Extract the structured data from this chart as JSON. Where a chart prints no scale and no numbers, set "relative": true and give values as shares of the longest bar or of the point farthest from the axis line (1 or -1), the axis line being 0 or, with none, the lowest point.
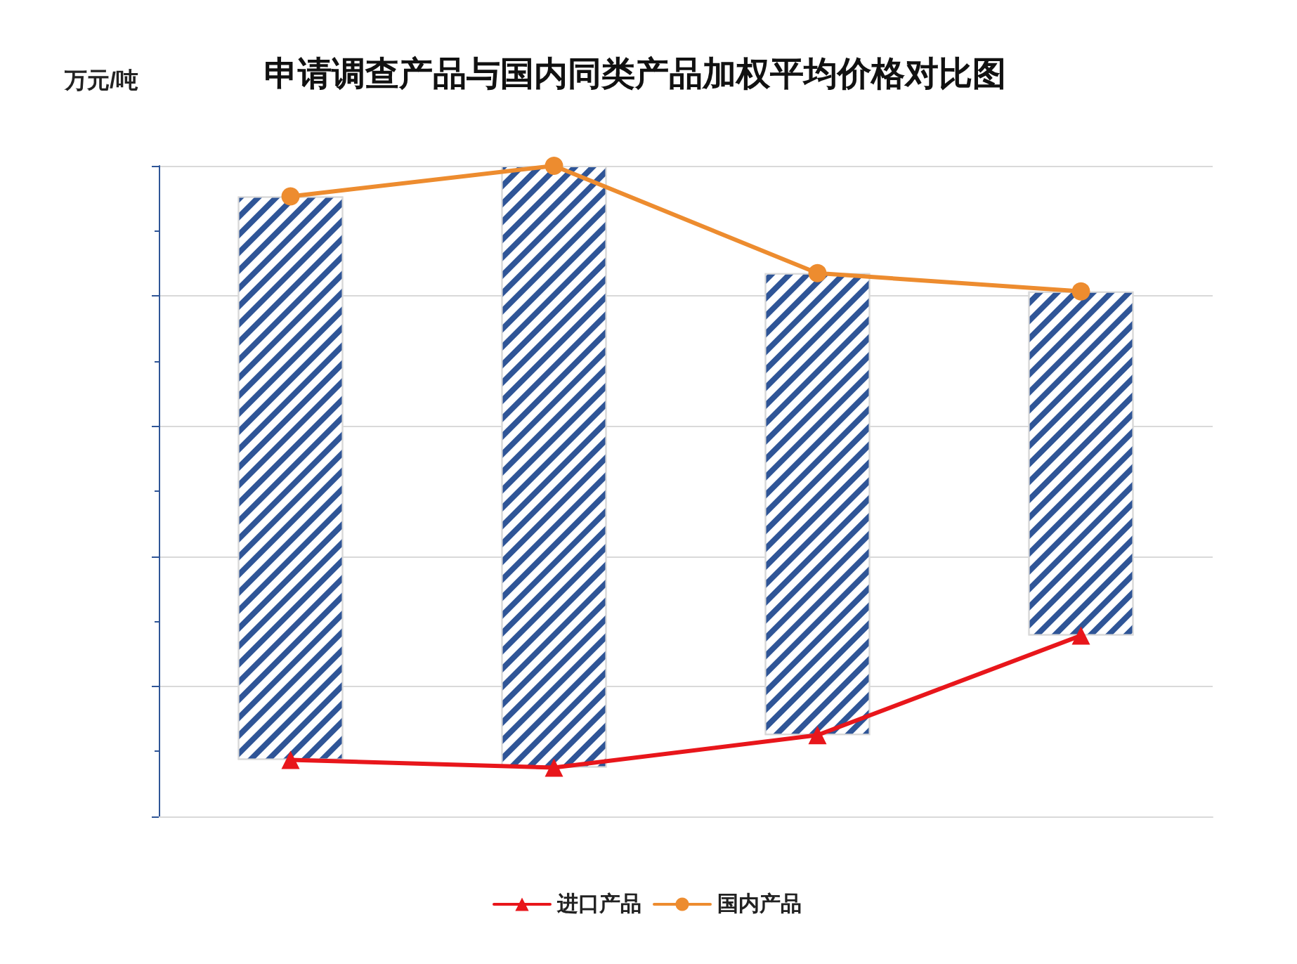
{
  "chart_data": {
    "type": "line",
    "title": "申请调查产品与国内同类产品加权平均价格对比图",
    "ylabel": "万元/吨",
    "relative": true,
    "categories": [
      null,
      null,
      null,
      null
    ],
    "series": [
      {
        "name": "进口产品",
        "color": "#e8161b",
        "marker": "triangle",
        "values": [
          0.087,
          0.075,
          0.125,
          0.278
        ]
      },
      {
        "name": "国内产品",
        "color": "#ed8c2f",
        "marker": "circle",
        "values": [
          0.953,
          1,
          0.835,
          0.807
        ]
      }
    ],
    "grid": "y",
    "legend": "bottom",
    "line_style": "solid"
  }
}
